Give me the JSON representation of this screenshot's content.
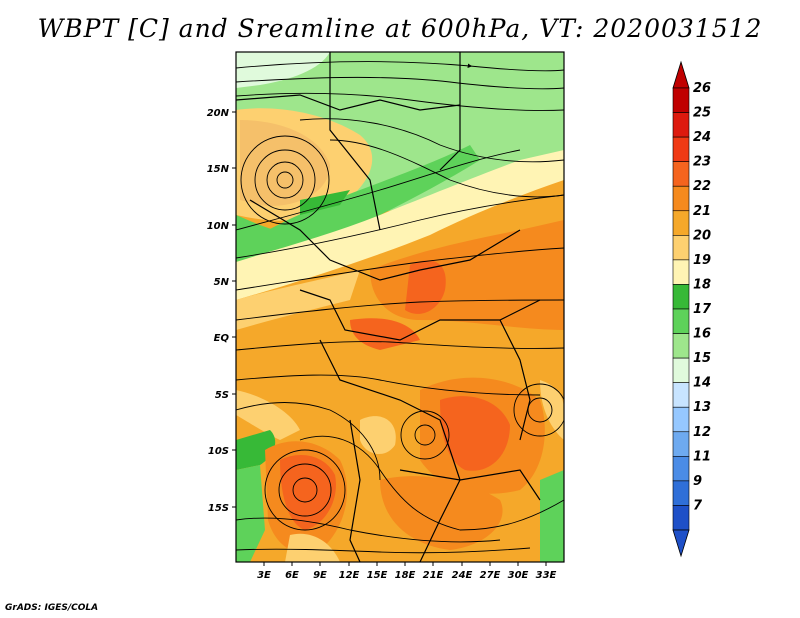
{
  "title": "WBPT [C] and Sreamline at 600hPa, VT: 2020031512",
  "credit": "GrADS: IGES/COLA",
  "lat_labels": [
    "20N",
    "15N",
    "10N",
    "5N",
    "EQ",
    "5S",
    "10S",
    "15S"
  ],
  "lon_labels": [
    "3E",
    "6E",
    "9E",
    "12E",
    "15E",
    "18E",
    "21E",
    "24E",
    "27E",
    "30E",
    "33E"
  ],
  "colorbar": {
    "levels": [
      "26",
      "25",
      "24",
      "23",
      "22",
      "21",
      "20",
      "19",
      "18",
      "17",
      "16",
      "15",
      "14",
      "13",
      "12",
      "11",
      "9",
      "7"
    ],
    "colors": [
      "#c00000",
      "#dd1a0e",
      "#f03a14",
      "#f5641e",
      "#f58a1e",
      "#f5a82a",
      "#fdd070",
      "#fff4b4",
      "#37b937",
      "#5ed25a",
      "#9ee68c",
      "#e0fadc",
      "#c8e4ff",
      "#96c8ff",
      "#6eaaf0",
      "#4b8ce6",
      "#2f6fd8",
      "#1e50c8"
    ]
  },
  "icons": {
    "top_arrow": "triangle-up",
    "bottom_arrow": "triangle-down"
  }
}
